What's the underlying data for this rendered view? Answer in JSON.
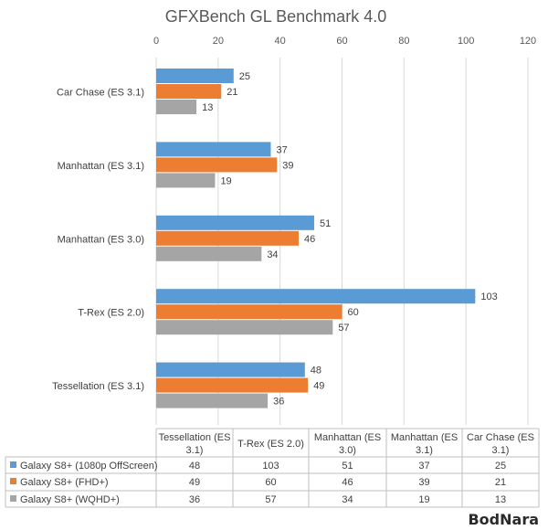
{
  "chart_data": {
    "type": "bar",
    "orientation": "horizontal",
    "title": "GFXBench GL Benchmark 4.0",
    "xlim": [
      0,
      120
    ],
    "xticks": [
      0,
      20,
      40,
      60,
      80,
      100,
      120
    ],
    "categories": [
      "Car Chase (ES 3.1)",
      "Manhattan (ES 3.1)",
      "Manhattan (ES 3.0)",
      "T-Rex (ES 2.0)",
      "Tessellation (ES 3.1)"
    ],
    "series": [
      {
        "name": "Galaxy S8+ (1080p OffScreen)",
        "color": "#5b9bd5",
        "values": [
          25,
          37,
          51,
          103,
          48
        ]
      },
      {
        "name": "Galaxy S8+ (FHD+)",
        "color": "#ed7d31",
        "values": [
          21,
          39,
          46,
          60,
          49
        ]
      },
      {
        "name": "Galaxy S8+ (WQHD+)",
        "color": "#a5a5a5",
        "values": [
          13,
          19,
          34,
          57,
          36
        ]
      }
    ],
    "grid": true,
    "legend": "data-table-bottom"
  },
  "table": {
    "headers": [
      [
        "Tessellation (ES",
        "3.1)"
      ],
      [
        "T-Rex (ES 2.0)"
      ],
      [
        "Manhattan (ES",
        "3.0)"
      ],
      [
        "Manhattan (ES",
        "3.1)"
      ],
      [
        "Car Chase (ES",
        "3.1)"
      ]
    ],
    "rows": [
      {
        "label": "Galaxy S8+ (1080p OffScreen)",
        "color": "#5b9bd5",
        "values": [
          "48",
          "103",
          "51",
          "37",
          "25"
        ]
      },
      {
        "label": "Galaxy S8+ (FHD+)",
        "color": "#ed7d31",
        "values": [
          "49",
          "60",
          "46",
          "39",
          "21"
        ]
      },
      {
        "label": "Galaxy S8+ (WQHD+)",
        "color": "#a5a5a5",
        "values": [
          "36",
          "57",
          "34",
          "19",
          "13"
        ]
      }
    ]
  },
  "watermark": "BodNara"
}
